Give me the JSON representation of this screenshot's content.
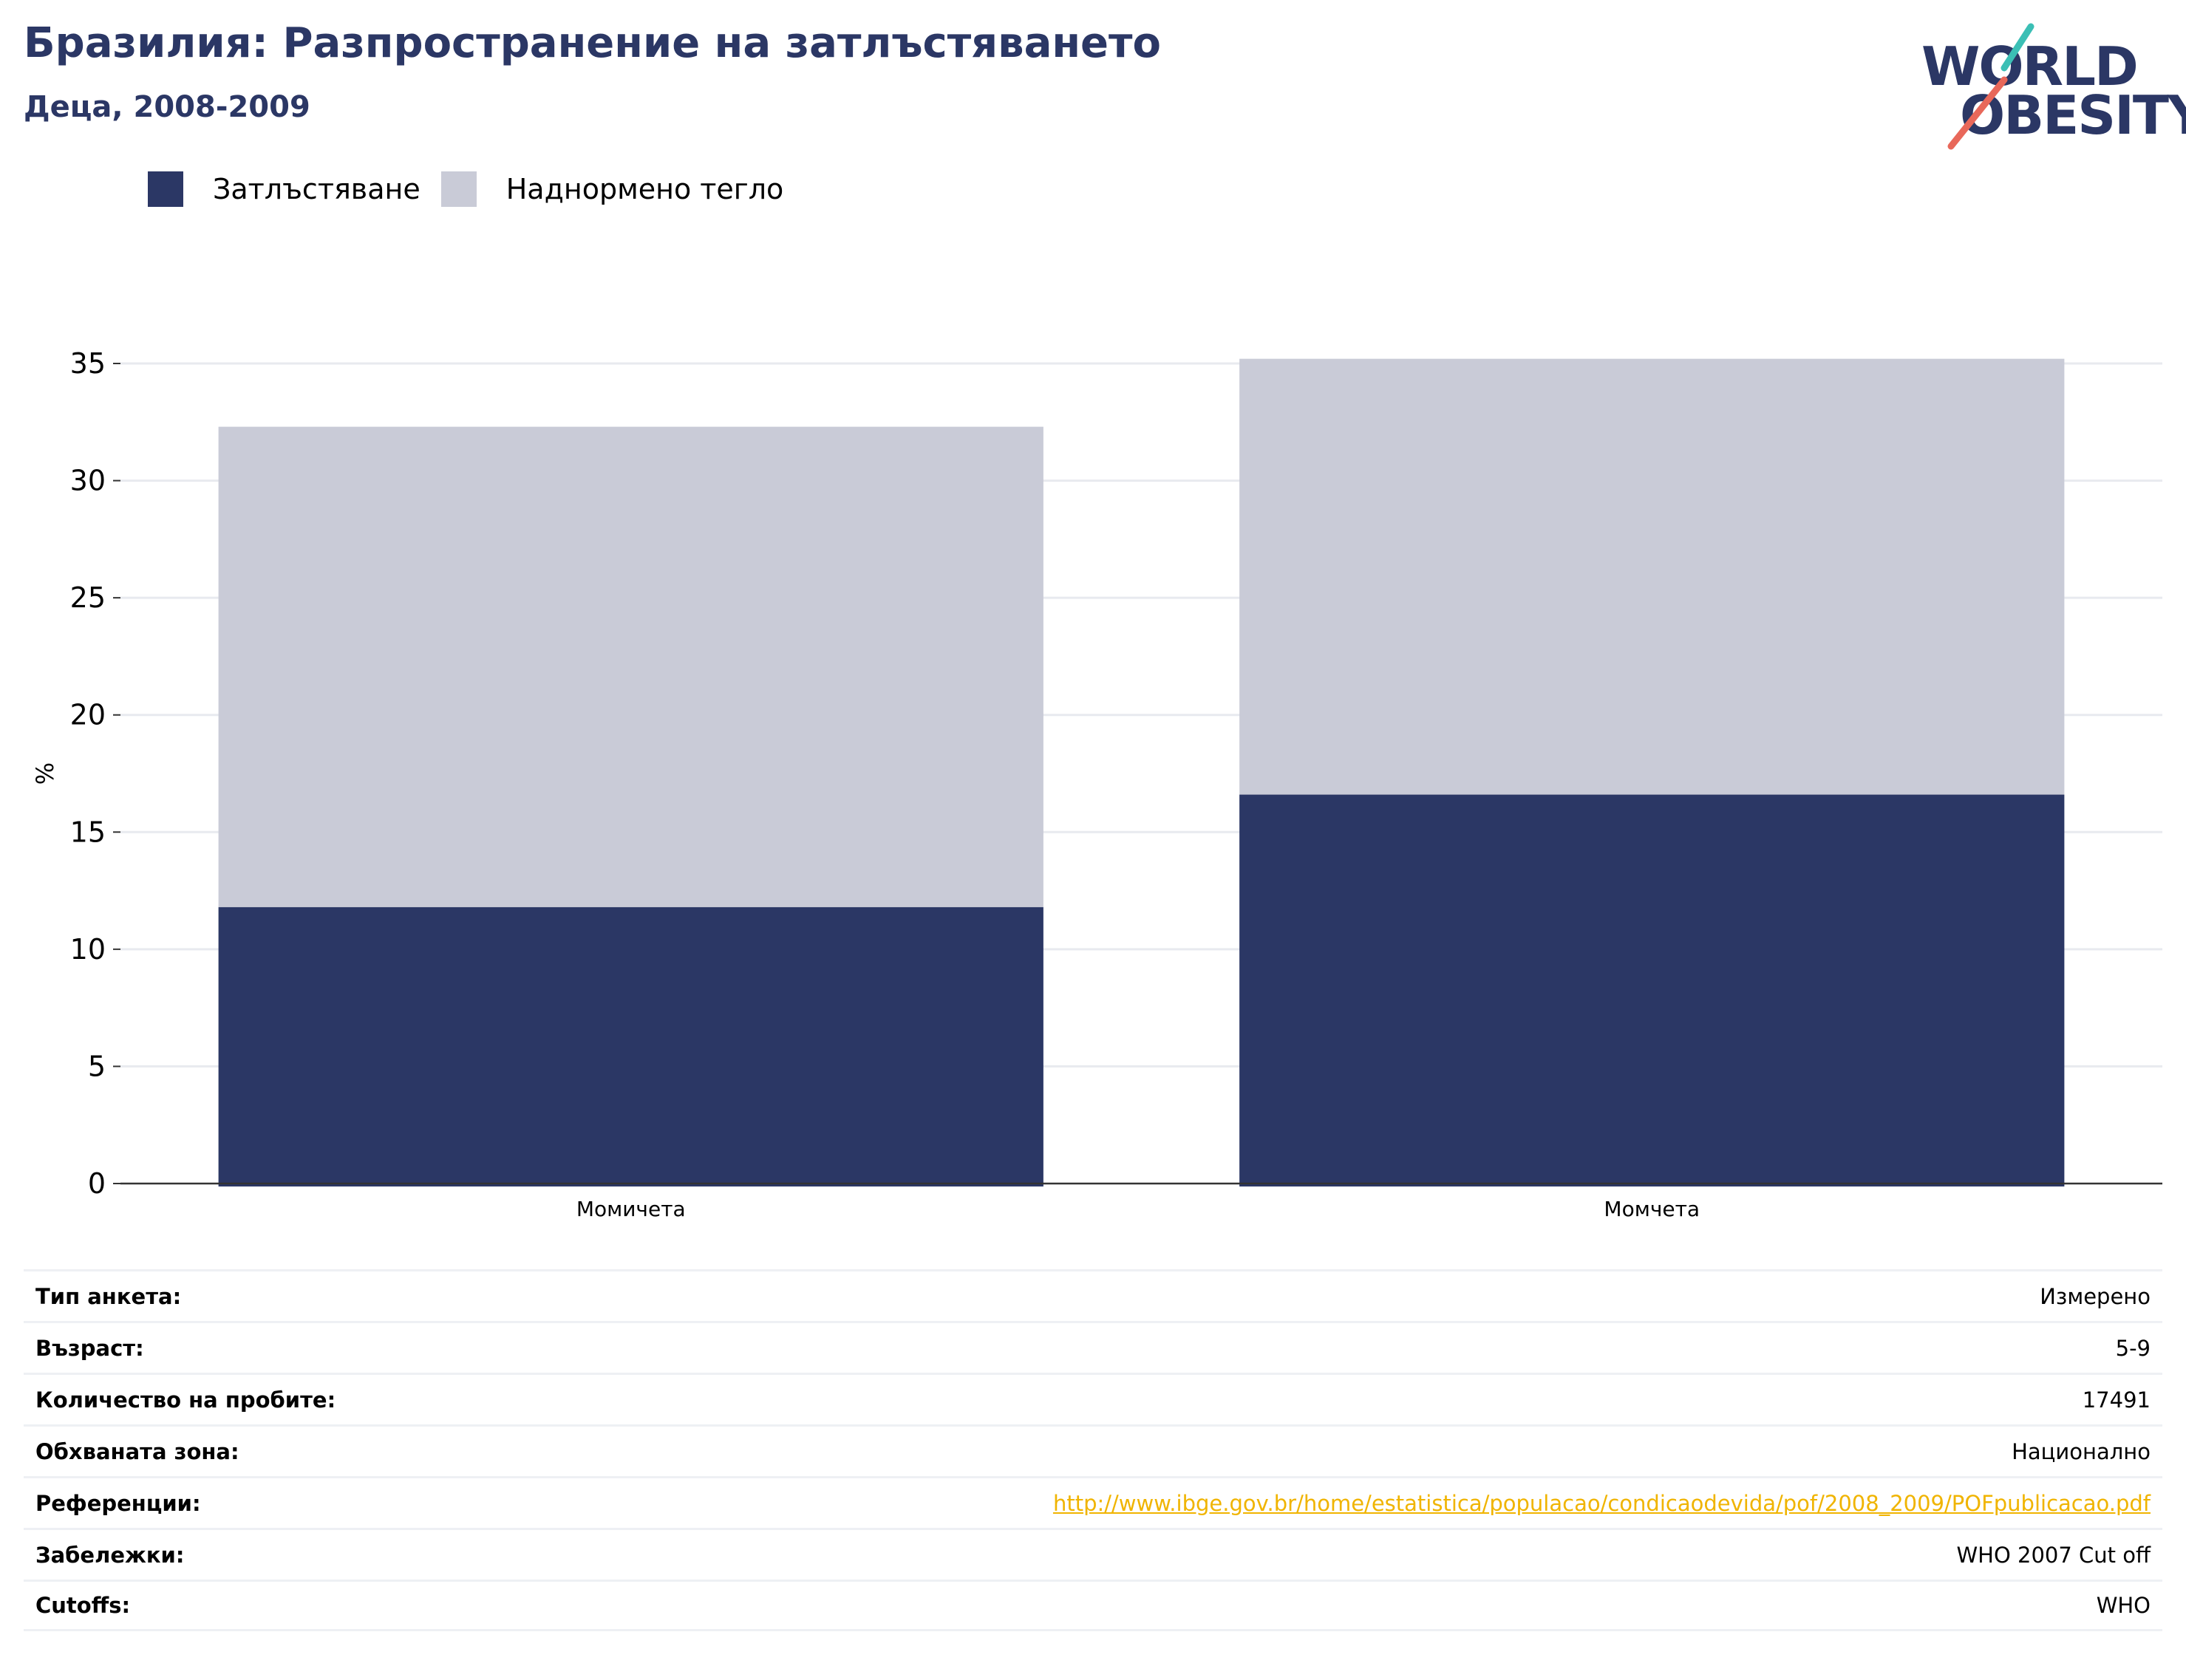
{
  "header": {
    "title": "Бразилия: Разпространение на затлъстяването",
    "subtitle": "Деца, 2008-2009"
  },
  "logo": {
    "line1": "WORLD",
    "line2": "OBESITY",
    "colors": {
      "text": "#2b3765",
      "accent_top": "#3bbfb5",
      "accent_bottom": "#e8685a"
    }
  },
  "legend": [
    {
      "label": "Затлъстяване",
      "color": "#2b3765"
    },
    {
      "label": "Наднормено тегло",
      "color": "#c9cbd7"
    }
  ],
  "chart_data": {
    "type": "bar",
    "stacked": true,
    "categories": [
      "Момичета",
      "Момчета"
    ],
    "series": [
      {
        "name": "Затлъстяване",
        "values": [
          11.8,
          16.6
        ],
        "color": "#2b3765"
      },
      {
        "name": "Наднормено тегло",
        "values": [
          20.5,
          18.6
        ],
        "color": "#c9cbd7"
      }
    ],
    "ylabel": "%",
    "ylim": [
      0,
      35
    ],
    "yticks": [
      0,
      5,
      10,
      15,
      20,
      25,
      30,
      35
    ],
    "grid": true
  },
  "info": [
    {
      "key": "Тип анкета:",
      "value": "Измерено"
    },
    {
      "key": "Възраст:",
      "value": "5-9"
    },
    {
      "key": "Количество на пробите:",
      "value": "17491"
    },
    {
      "key": "Обхваната зона:",
      "value": "Национално"
    },
    {
      "key": "Референции:",
      "value": "http://www.ibge.gov.br/home/estatistica/populacao/condicaodevida/pof/2008_2009/POFpublicacao.pdf",
      "link": true
    },
    {
      "key": "Забележки:",
      "value": "WHO 2007 Cut off"
    },
    {
      "key": "Cutoffs:",
      "value": "WHO"
    }
  ]
}
